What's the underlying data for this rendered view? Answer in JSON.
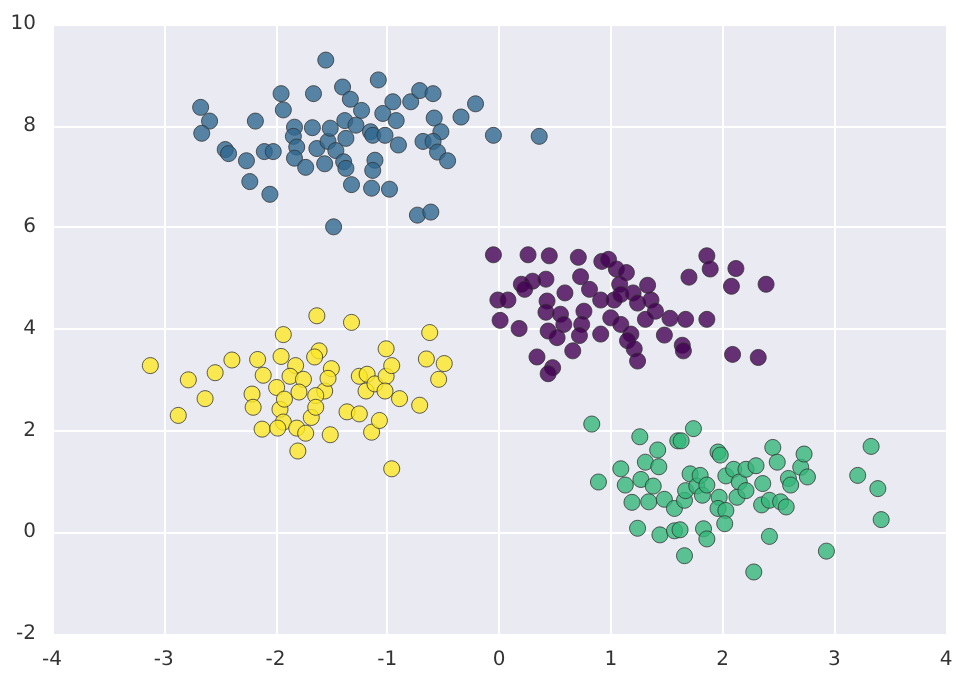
{
  "chart_data": {
    "type": "scatter",
    "xlim": [
      -4,
      4
    ],
    "ylim": [
      -2,
      10
    ],
    "xticks": [
      -4,
      -3,
      -2,
      -1,
      0,
      1,
      2,
      3,
      4
    ],
    "yticks": [
      -2,
      0,
      2,
      4,
      6,
      8,
      10
    ],
    "grid": true,
    "marker": "circle",
    "series": [
      {
        "color": "#31688e",
        "x": [
          -1.55,
          -2.67,
          -2.59,
          -2.66,
          -2.45,
          -2.42,
          -2.26,
          -2.23,
          -2.18,
          -2.05,
          -2.1,
          -2.02,
          -1.95,
          -1.93,
          -1.83,
          -1.84,
          -1.81,
          -1.83,
          -1.73,
          -1.67,
          -1.66,
          -1.63,
          -1.56,
          -1.53,
          -1.51,
          -1.46,
          -1.4,
          -1.33,
          -1.38,
          -1.37,
          -1.39,
          -1.37,
          -1.48,
          -1.32,
          -1.28,
          -1.23,
          -1.15,
          -1.13,
          -1.11,
          -1.13,
          -1.14,
          -1.08,
          -1.04,
          -1.02,
          -0.95,
          -0.92,
          -0.9,
          -0.98,
          -0.79,
          -0.71,
          -0.59,
          -0.58,
          -0.52,
          -0.68,
          -0.59,
          -0.55,
          -0.46,
          -0.34,
          -0.21,
          -0.05,
          0.36,
          -0.73,
          -0.61
        ],
        "values": [
          9.29,
          8.36,
          8.09,
          7.85,
          7.53,
          7.45,
          7.31,
          6.9,
          8.09,
          6.65,
          7.49,
          7.49,
          8.63,
          8.31,
          7.97,
          7.79,
          7.58,
          7.36,
          7.18,
          7.96,
          8.63,
          7.55,
          7.25,
          7.69,
          7.95,
          7.51,
          8.76,
          8.52,
          8.1,
          7.75,
          7.29,
          7.16,
          6.01,
          6.84,
          8.01,
          8.3,
          7.88,
          7.81,
          7.32,
          7.12,
          6.77,
          8.9,
          8.24,
          7.81,
          8.47,
          8.1,
          7.62,
          6.75,
          8.47,
          8.69,
          8.63,
          8.15,
          7.88,
          7.69,
          7.69,
          7.48,
          7.31,
          8.17,
          8.43,
          7.81,
          7.79,
          6.24,
          6.3
        ]
      },
      {
        "color": "#440154",
        "x": [
          -0.05,
          0.26,
          0.45,
          0.71,
          0.92,
          0.98,
          1.05,
          1.14,
          0.73,
          0.2,
          0.3,
          0.42,
          0.23,
          0.59,
          0.81,
          1.08,
          1.33,
          1.7,
          1.86,
          1.89,
          2.12,
          2.08,
          2.39,
          -0.01,
          0.08,
          0.01,
          0.18,
          0.43,
          0.42,
          0.55,
          0.58,
          0.76,
          0.74,
          0.91,
          1.03,
          1.09,
          1.2,
          1.24,
          1.36,
          1.4,
          1.0,
          1.09,
          1.31,
          1.53,
          1.67,
          1.86,
          0.44,
          0.52,
          0.72,
          0.91,
          1.18,
          1.15,
          1.21,
          1.48,
          1.64,
          1.65,
          1.24,
          0.66,
          0.34,
          0.48,
          0.44,
          2.09,
          2.32
        ],
        "values": [
          5.46,
          5.46,
          5.44,
          5.41,
          5.33,
          5.37,
          5.18,
          5.11,
          5.03,
          4.88,
          4.94,
          4.98,
          4.78,
          4.71,
          4.78,
          4.88,
          4.86,
          5.02,
          5.44,
          5.18,
          5.19,
          4.84,
          4.88,
          4.57,
          4.57,
          4.17,
          4.01,
          4.55,
          4.33,
          4.29,
          4.09,
          4.35,
          4.09,
          4.57,
          4.57,
          4.68,
          4.71,
          4.51,
          4.57,
          4.35,
          4.22,
          4.09,
          4.19,
          4.21,
          4.19,
          4.19,
          3.96,
          3.83,
          3.87,
          3.9,
          3.9,
          3.77,
          3.61,
          3.88,
          3.68,
          3.57,
          3.37,
          3.57,
          3.45,
          3.24,
          3.12,
          3.5,
          3.44
        ]
      },
      {
        "color": "#fde725",
        "x": [
          -3.12,
          -2.87,
          -2.78,
          -2.63,
          -2.54,
          -2.39,
          -2.21,
          -2.2,
          -2.16,
          -2.11,
          -2.12,
          -1.93,
          -1.95,
          -1.99,
          -1.96,
          -1.93,
          -1.98,
          -1.92,
          -1.82,
          -1.87,
          -1.75,
          -1.79,
          -1.81,
          -1.73,
          -1.8,
          -1.63,
          -1.61,
          -1.65,
          -1.5,
          -1.56,
          -1.64,
          -1.68,
          -1.64,
          -1.53,
          -1.51,
          -1.32,
          -1.36,
          -1.25,
          -1.25,
          -1.18,
          -1.19,
          -1.11,
          -1.14,
          -1.07,
          -1.01,
          -1.01,
          -1.02,
          -0.96,
          -0.89,
          -0.96,
          -0.71,
          -0.65,
          -0.62,
          -0.54,
          -0.49
        ],
        "values": [
          3.28,
          2.3,
          3.0,
          2.63,
          3.14,
          3.39,
          2.72,
          2.46,
          3.4,
          3.09,
          2.03,
          3.89,
          3.46,
          2.85,
          2.42,
          2.17,
          2.05,
          2.62,
          3.28,
          3.07,
          3.01,
          2.76,
          2.05,
          1.95,
          1.6,
          4.26,
          3.57,
          3.45,
          3.22,
          2.78,
          2.69,
          2.26,
          2.46,
          3.03,
          1.92,
          4.13,
          2.37,
          2.33,
          3.07,
          3.11,
          2.78,
          2.92,
          1.97,
          2.2,
          3.61,
          3.07,
          2.78,
          3.28,
          2.63,
          1.25,
          2.5,
          3.41,
          3.93,
          3.01,
          3.32
        ]
      },
      {
        "color": "#35b779",
        "x": [
          0.83,
          0.89,
          1.09,
          1.13,
          1.19,
          1.24,
          1.26,
          1.31,
          1.42,
          1.43,
          1.27,
          1.38,
          1.34,
          1.48,
          1.44,
          1.57,
          1.57,
          1.62,
          1.66,
          1.6,
          1.63,
          1.74,
          1.66,
          1.67,
          1.71,
          1.77,
          1.8,
          1.82,
          1.86,
          1.83,
          1.86,
          1.96,
          1.98,
          1.97,
          1.96,
          2.03,
          2.02,
          2.03,
          2.1,
          2.15,
          2.13,
          2.21,
          2.21,
          2.3,
          2.36,
          2.35,
          2.42,
          2.45,
          2.49,
          2.52,
          2.57,
          2.42,
          2.28,
          2.59,
          2.61,
          2.7,
          2.73,
          2.76,
          2.93,
          3.21,
          3.33,
          3.39,
          3.42
        ],
        "values": [
          2.13,
          0.99,
          1.25,
          0.93,
          0.59,
          0.08,
          1.88,
          1.38,
          1.62,
          1.29,
          1.04,
          0.91,
          0.6,
          0.65,
          -0.05,
          0.47,
          0.03,
          0.05,
          -0.46,
          1.8,
          1.8,
          2.04,
          0.63,
          0.82,
          1.15,
          0.91,
          1.12,
          0.73,
          0.93,
          0.07,
          -0.13,
          1.58,
          1.52,
          0.69,
          0.47,
          0.43,
          0.17,
          1.11,
          1.24,
          0.99,
          0.69,
          1.24,
          0.82,
          1.31,
          0.96,
          0.54,
          0.63,
          1.67,
          1.38,
          0.6,
          0.5,
          -0.08,
          -0.78,
          1.06,
          0.93,
          1.28,
          1.54,
          1.09,
          -0.37,
          1.12,
          1.69,
          0.86,
          0.25
        ]
      }
    ]
  }
}
